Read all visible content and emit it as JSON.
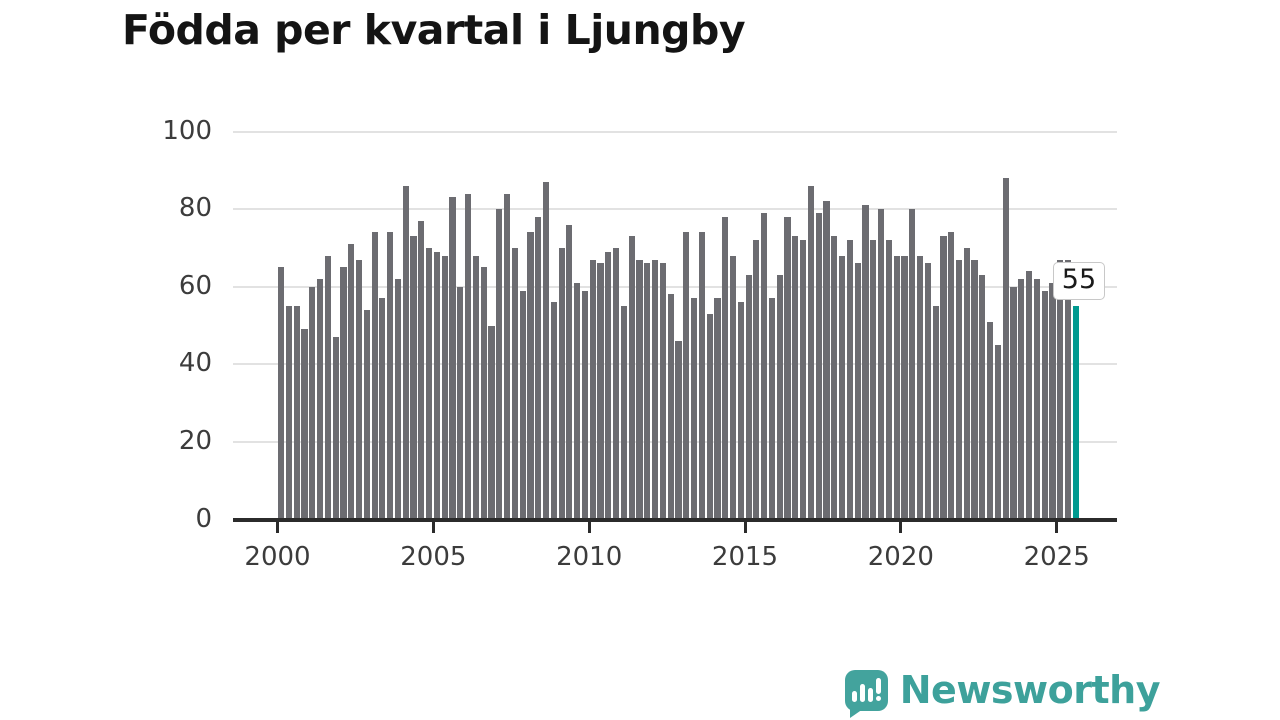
{
  "title": "Födda per kvartal i Ljungby",
  "chart_data": {
    "type": "bar",
    "title": "Födda per kvartal i Ljungby",
    "x_start": "2000-Q1",
    "x_end": "2025-Q3",
    "x_tick_labels": [
      "2000",
      "2005",
      "2010",
      "2015",
      "2020",
      "2025"
    ],
    "y_ticks": [
      0,
      20,
      40,
      60,
      80,
      100
    ],
    "ylim": [
      0,
      100
    ],
    "grid": true,
    "bar_color": "#6c6c71",
    "highlight_color": "#00998f",
    "annotation_label": "55",
    "highlight_last_value": 55,
    "series": [
      {
        "name": "Födda per kvartal",
        "values_by_year": {
          "2000": [
            65,
            55,
            55,
            49
          ],
          "2001": [
            60,
            62,
            68,
            47
          ],
          "2002": [
            65,
            71,
            67,
            54
          ],
          "2003": [
            74,
            57,
            74,
            62
          ],
          "2004": [
            86,
            73,
            77,
            70
          ],
          "2005": [
            69,
            68,
            83,
            60
          ],
          "2006": [
            84,
            68,
            65,
            50
          ],
          "2007": [
            80,
            84,
            70,
            59
          ],
          "2008": [
            74,
            78,
            87,
            56
          ],
          "2009": [
            70,
            76,
            61,
            59
          ],
          "2010": [
            67,
            66,
            69,
            70
          ],
          "2011": [
            55,
            73,
            67,
            66
          ],
          "2012": [
            67,
            66,
            58,
            46
          ],
          "2013": [
            74,
            57,
            74,
            53
          ],
          "2014": [
            57,
            78,
            68,
            56
          ],
          "2015": [
            63,
            72,
            79,
            57
          ],
          "2016": [
            63,
            78,
            73,
            72
          ],
          "2017": [
            86,
            79,
            82,
            73
          ],
          "2018": [
            68,
            72,
            66,
            81
          ],
          "2019": [
            72,
            80,
            72,
            68
          ],
          "2020": [
            68,
            80,
            68,
            66
          ],
          "2021": [
            55,
            73,
            74,
            67
          ],
          "2022": [
            70,
            67,
            63,
            51
          ],
          "2023": [
            45,
            88,
            60,
            62
          ],
          "2024": [
            64,
            62,
            59,
            61
          ],
          "2025": [
            67,
            67,
            55
          ]
        }
      }
    ]
  },
  "branding": {
    "logo_text": "Newsworthy",
    "logo_color": "#3da19b"
  }
}
